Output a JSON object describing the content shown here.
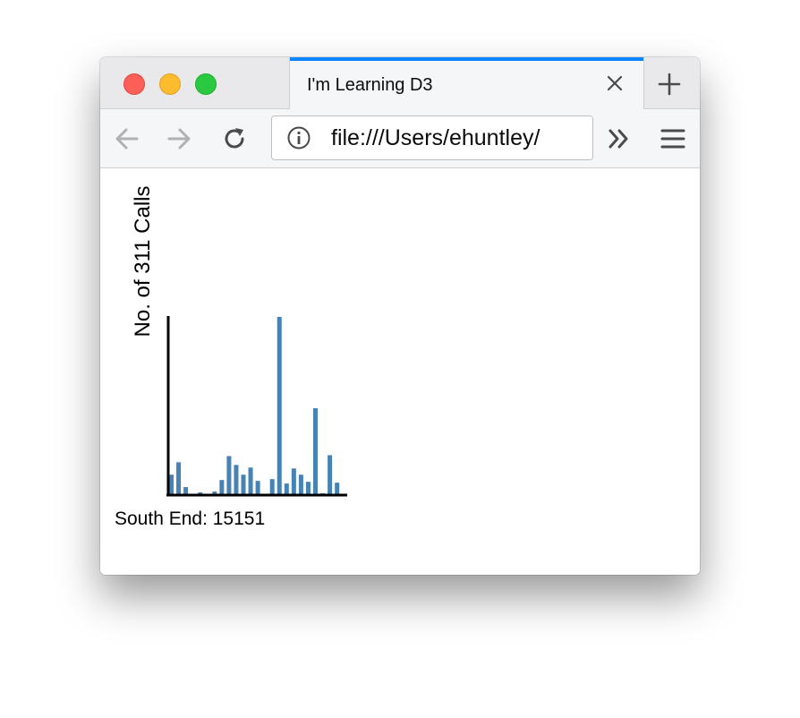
{
  "tab": {
    "title": "I'm Learning D3"
  },
  "toolbar": {
    "url": "file:///Users/ehuntley/"
  },
  "icons": {
    "tab_close": "close-icon",
    "new_tab": "plus-icon",
    "back": "back-arrow-icon",
    "forward": "forward-arrow-icon",
    "reload": "reload-icon",
    "info": "info-icon",
    "overflow": "double-chevron-icon",
    "menu": "hamburger-icon"
  },
  "colors": {
    "bar": "#4682b4",
    "tab_accent": "#0a84ff"
  },
  "chart_data": {
    "type": "bar",
    "ylabel": "No. of 311 Calls",
    "caption": "South End: 15151",
    "ylim": [
      0,
      200
    ],
    "values": [
      22,
      36,
      8,
      0,
      2,
      0,
      3,
      16,
      43,
      33,
      22,
      30,
      15,
      0,
      17,
      200,
      12,
      29,
      22,
      14,
      97,
      1,
      44,
      13
    ]
  }
}
